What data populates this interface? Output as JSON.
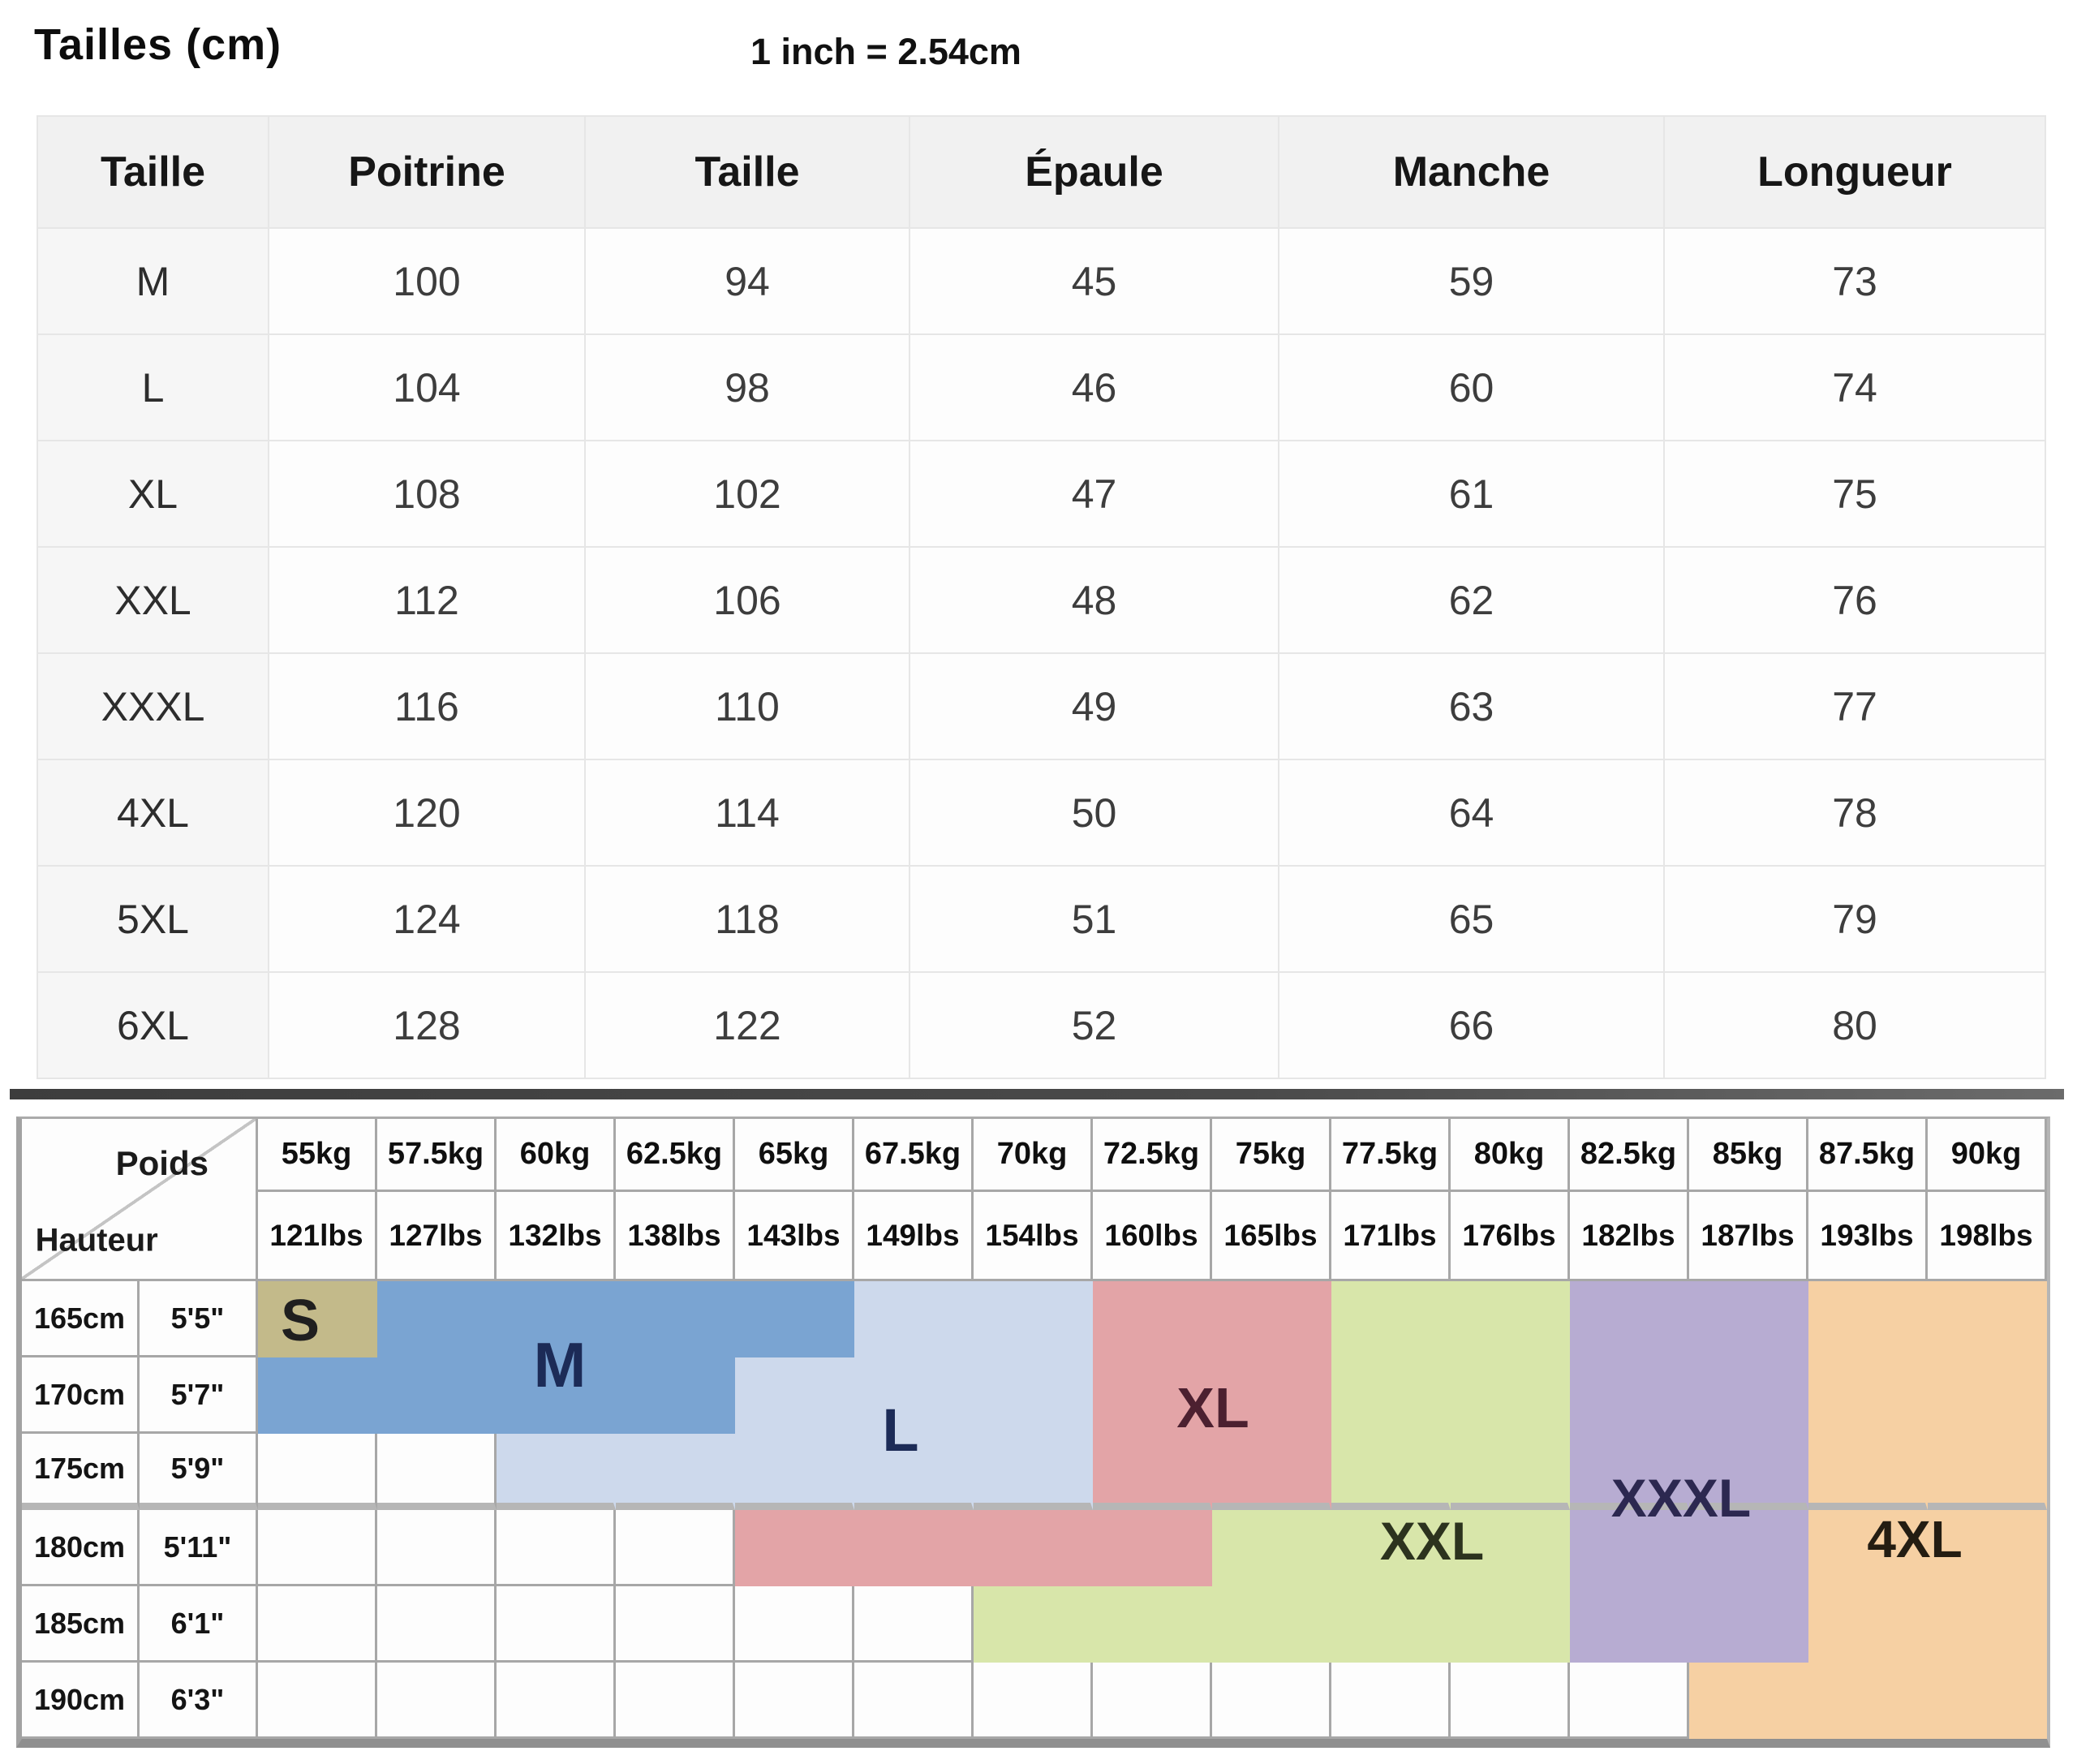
{
  "page": {
    "title": "Tailles (cm)",
    "conversion_note": "1 inch = 2.54cm"
  },
  "chart_data": [
    {
      "type": "table",
      "title": "Tailles (cm)",
      "note": "1 inch = 2.54cm",
      "columns": [
        "Taille",
        "Poitrine",
        "Taille",
        "Épaule",
        "Manche",
        "Longueur"
      ],
      "rows": [
        {
          "size": "M",
          "values": [
            "100",
            "94",
            "45",
            "59",
            "73"
          ]
        },
        {
          "size": "L",
          "values": [
            "104",
            "98",
            "46",
            "60",
            "74"
          ]
        },
        {
          "size": "XL",
          "values": [
            "108",
            "102",
            "47",
            "61",
            "75"
          ]
        },
        {
          "size": "XXL",
          "values": [
            "112",
            "106",
            "48",
            "62",
            "76"
          ]
        },
        {
          "size": "XXXL",
          "values": [
            "116",
            "110",
            "49",
            "63",
            "77"
          ]
        },
        {
          "size": "4XL",
          "values": [
            "120",
            "114",
            "50",
            "64",
            "78"
          ]
        },
        {
          "size": "5XL",
          "values": [
            "124",
            "118",
            "51",
            "65",
            "79"
          ]
        },
        {
          "size": "6XL",
          "values": [
            "128",
            "122",
            "52",
            "66",
            "80"
          ]
        }
      ]
    },
    {
      "type": "heatmap",
      "corner_top_label": "Poids",
      "corner_bottom_label": "Hauteur",
      "weights_kg": [
        "55kg",
        "57.5kg",
        "60kg",
        "62.5kg",
        "65kg",
        "67.5kg",
        "70kg",
        "72.5kg",
        "75kg",
        "77.5kg",
        "80kg",
        "82.5kg",
        "85kg",
        "87.5kg",
        "90kg"
      ],
      "weights_lbs": [
        "121lbs",
        "127lbs",
        "132lbs",
        "138lbs",
        "143lbs",
        "149lbs",
        "154lbs",
        "160lbs",
        "165lbs",
        "171lbs",
        "176lbs",
        "182lbs",
        "187lbs",
        "193lbs",
        "198lbs"
      ],
      "heights_cm": [
        "165cm",
        "170cm",
        "175cm",
        "180cm",
        "185cm",
        "190cm"
      ],
      "heights_ft": [
        "5'5\"",
        "5'7\"",
        "5'9\"",
        "5'11\"",
        "6'1\"",
        "6'3\""
      ],
      "regions": [
        {
          "code": "S",
          "label": "S",
          "fill": "#c3ba8a",
          "text_color": "#1f1f1f"
        },
        {
          "code": "M",
          "label": "M",
          "fill": "#7aa4d2",
          "text_color": "#1c2b57"
        },
        {
          "code": "L",
          "label": "L",
          "fill": "#cdd9ec",
          "text_color": "#1c2b57"
        },
        {
          "code": "XL",
          "label": "XL",
          "fill": "#e3a4a7",
          "text_color": "#4c2030"
        },
        {
          "code": "XXL",
          "label": "XXL",
          "fill": "#d8e6aa",
          "text_color": "#2c331e"
        },
        {
          "code": "XXXL",
          "label": "XXXL",
          "fill": "#b7acd2",
          "text_color": "#2c2850"
        },
        {
          "code": "4XL",
          "label": "4XL",
          "fill": "#f6d0a3",
          "text_color": "#241d12"
        }
      ],
      "cells": [
        [
          "S",
          "M",
          "M",
          "M",
          "M",
          "L",
          "L",
          "XL",
          "XL",
          "XXL",
          "XXL",
          "XXXL",
          "XXXL",
          "4XL",
          "4XL"
        ],
        [
          "M",
          "M",
          "M",
          "M",
          "L",
          "L",
          "L",
          "XL",
          "XL",
          "XXL",
          "XXL",
          "XXXL",
          "XXXL",
          "4XL",
          "4XL"
        ],
        [
          "W",
          "W",
          "L",
          "L",
          "L",
          "L",
          "L",
          "XL",
          "XL",
          "XXL",
          "XXL",
          "XXXL",
          "XXXL",
          "4XL",
          "4XL"
        ],
        [
          "W",
          "W",
          "W",
          "W",
          "XL",
          "XL",
          "XL",
          "XL",
          "XXL",
          "XXL",
          "XXL",
          "XXXL",
          "XXXL",
          "4XL",
          "4XL"
        ],
        [
          "W",
          "W",
          "W",
          "W",
          "W",
          "W",
          "XXL",
          "XXL",
          "XXL",
          "XXL",
          "XXL",
          "XXXL",
          "XXXL",
          "4XL",
          "4XL"
        ],
        [
          "W",
          "W",
          "W",
          "W",
          "W",
          "W",
          "W",
          "W",
          "W",
          "W",
          "W",
          "W",
          "4XL",
          "4XL",
          "4XL"
        ]
      ]
    }
  ]
}
